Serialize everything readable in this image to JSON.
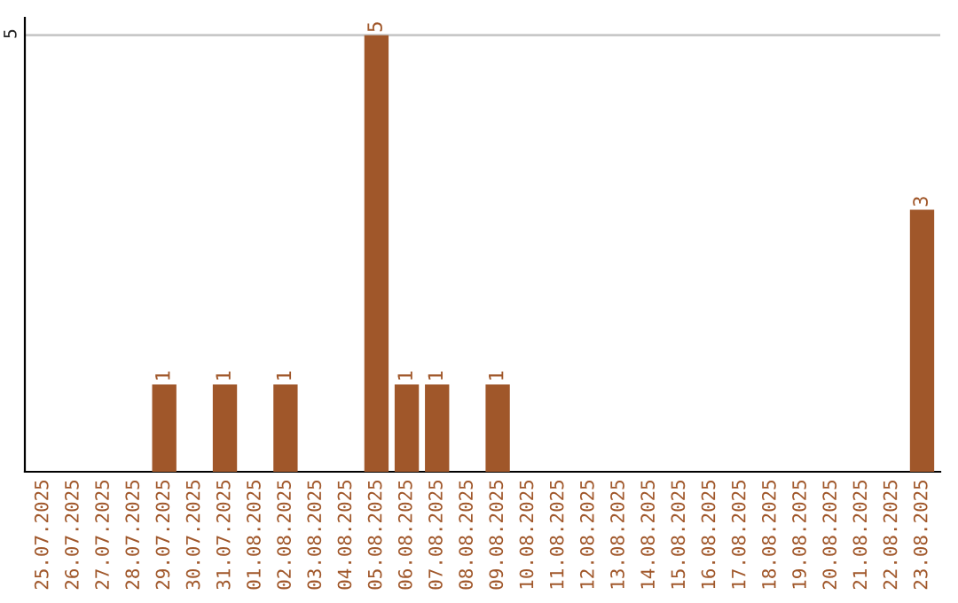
{
  "chart_data": {
    "type": "bar",
    "categories": [
      "25.07.2025",
      "26.07.2025",
      "27.07.2025",
      "28.07.2025",
      "29.07.2025",
      "30.07.2025",
      "31.07.2025",
      "01.08.2025",
      "02.08.2025",
      "03.08.2025",
      "04.08.2025",
      "05.08.2025",
      "06.08.2025",
      "07.08.2025",
      "08.08.2025",
      "09.08.2025",
      "10.08.2025",
      "11.08.2025",
      "12.08.2025",
      "13.08.2025",
      "14.08.2025",
      "15.08.2025",
      "16.08.2025",
      "17.08.2025",
      "18.08.2025",
      "19.08.2025",
      "20.08.2025",
      "21.08.2025",
      "22.08.2025",
      "23.08.2025"
    ],
    "values": [
      0,
      0,
      0,
      0,
      1,
      0,
      1,
      0,
      1,
      0,
      0,
      5,
      1,
      1,
      0,
      1,
      0,
      0,
      0,
      0,
      0,
      0,
      0,
      0,
      0,
      0,
      0,
      0,
      0,
      3
    ],
    "value_labels": [
      null,
      null,
      null,
      null,
      "1",
      null,
      "1",
      null,
      "1",
      null,
      null,
      "5",
      "1",
      "1",
      null,
      "1",
      null,
      null,
      null,
      null,
      null,
      null,
      null,
      null,
      null,
      null,
      null,
      null,
      null,
      "3"
    ],
    "color": "#a0572a",
    "ylim": [
      0,
      5.2
    ],
    "yticks": [
      5
    ],
    "grid": "y"
  }
}
